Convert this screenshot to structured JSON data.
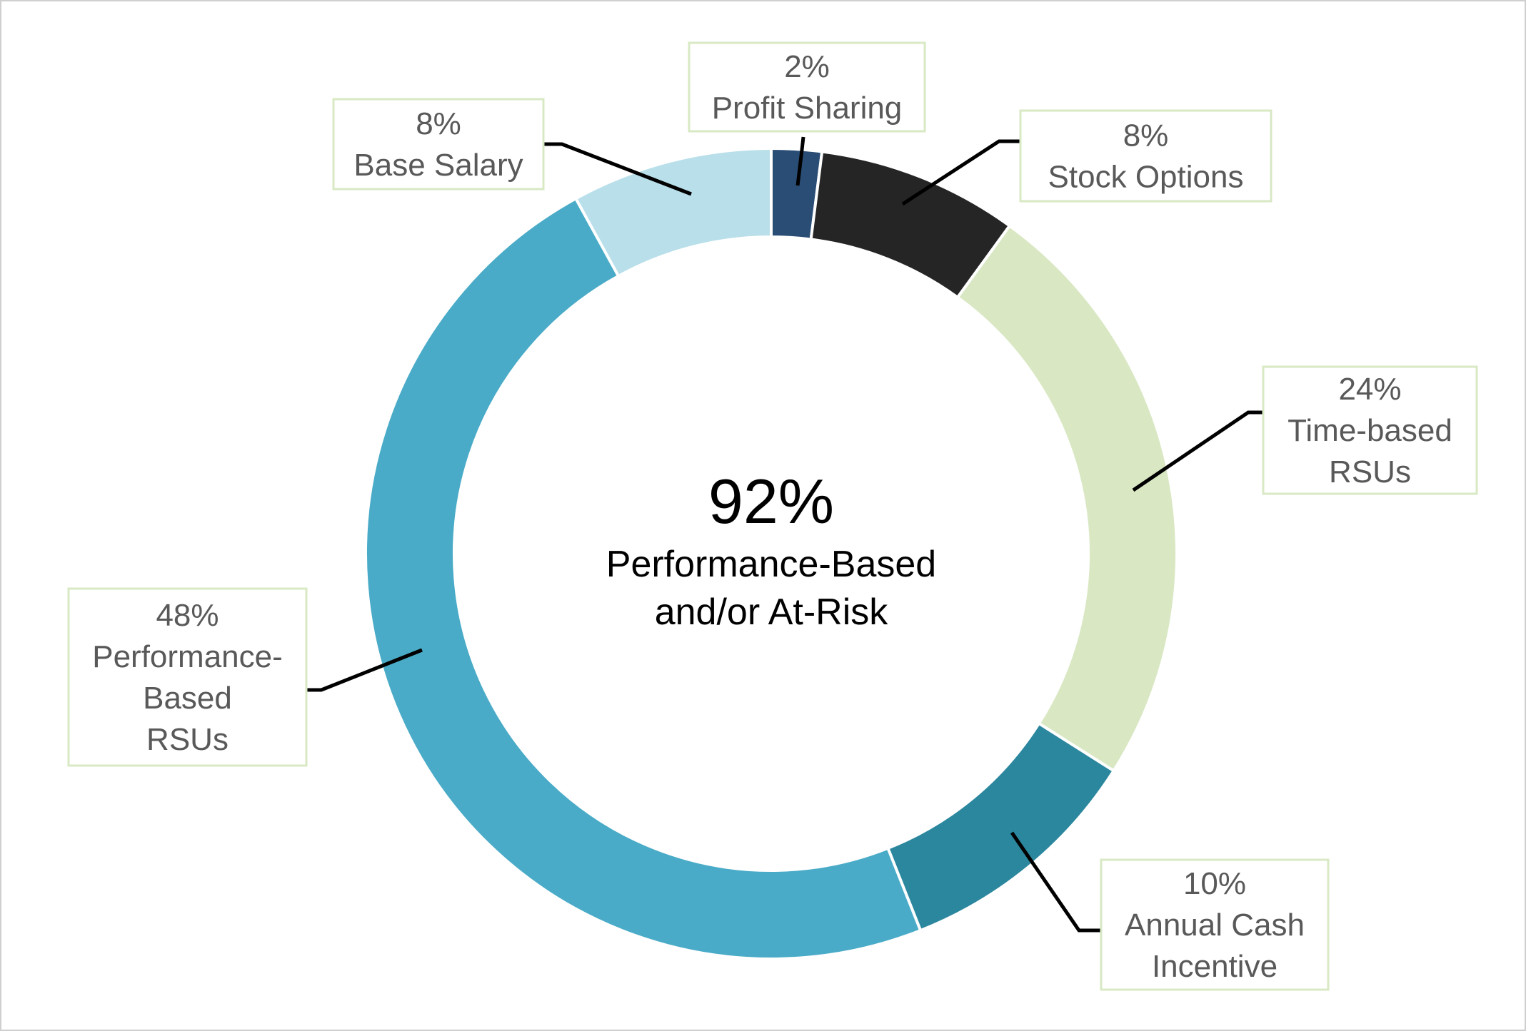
{
  "chart_data": {
    "type": "pie",
    "subtype": "donut",
    "title": "",
    "center": {
      "value": "92%",
      "line1": "Performance-Based",
      "line2": "and/or At-Risk"
    },
    "slices": [
      {
        "name": "Profit Sharing",
        "value": 2,
        "percent_label": "2%",
        "label_lines": [
          "2%",
          "Profit Sharing"
        ],
        "color": "#2a4d75"
      },
      {
        "name": "Stock Options",
        "value": 8,
        "percent_label": "8%",
        "label_lines": [
          "8%",
          "Stock Options"
        ],
        "color": "#252525"
      },
      {
        "name": "Time-based RSUs",
        "value": 24,
        "percent_label": "24%",
        "label_lines": [
          "24%",
          "Time-based",
          "RSUs"
        ],
        "color": "#d9e8c3"
      },
      {
        "name": "Annual Cash Incentive",
        "value": 10,
        "percent_label": "10%",
        "label_lines": [
          "10%",
          "Annual Cash",
          "Incentive"
        ],
        "color": "#2b879e"
      },
      {
        "name": "Performance-Based RSUs",
        "value": 48,
        "percent_label": "48%",
        "label_lines": [
          "48%",
          "Performance-",
          "Based",
          "RSUs"
        ],
        "color": "#49abc7"
      },
      {
        "name": "Base Salary",
        "value": 8,
        "percent_label": "8%",
        "label_lines": [
          "8%",
          "Base Salary"
        ],
        "color": "#b8dfea"
      }
    ]
  }
}
